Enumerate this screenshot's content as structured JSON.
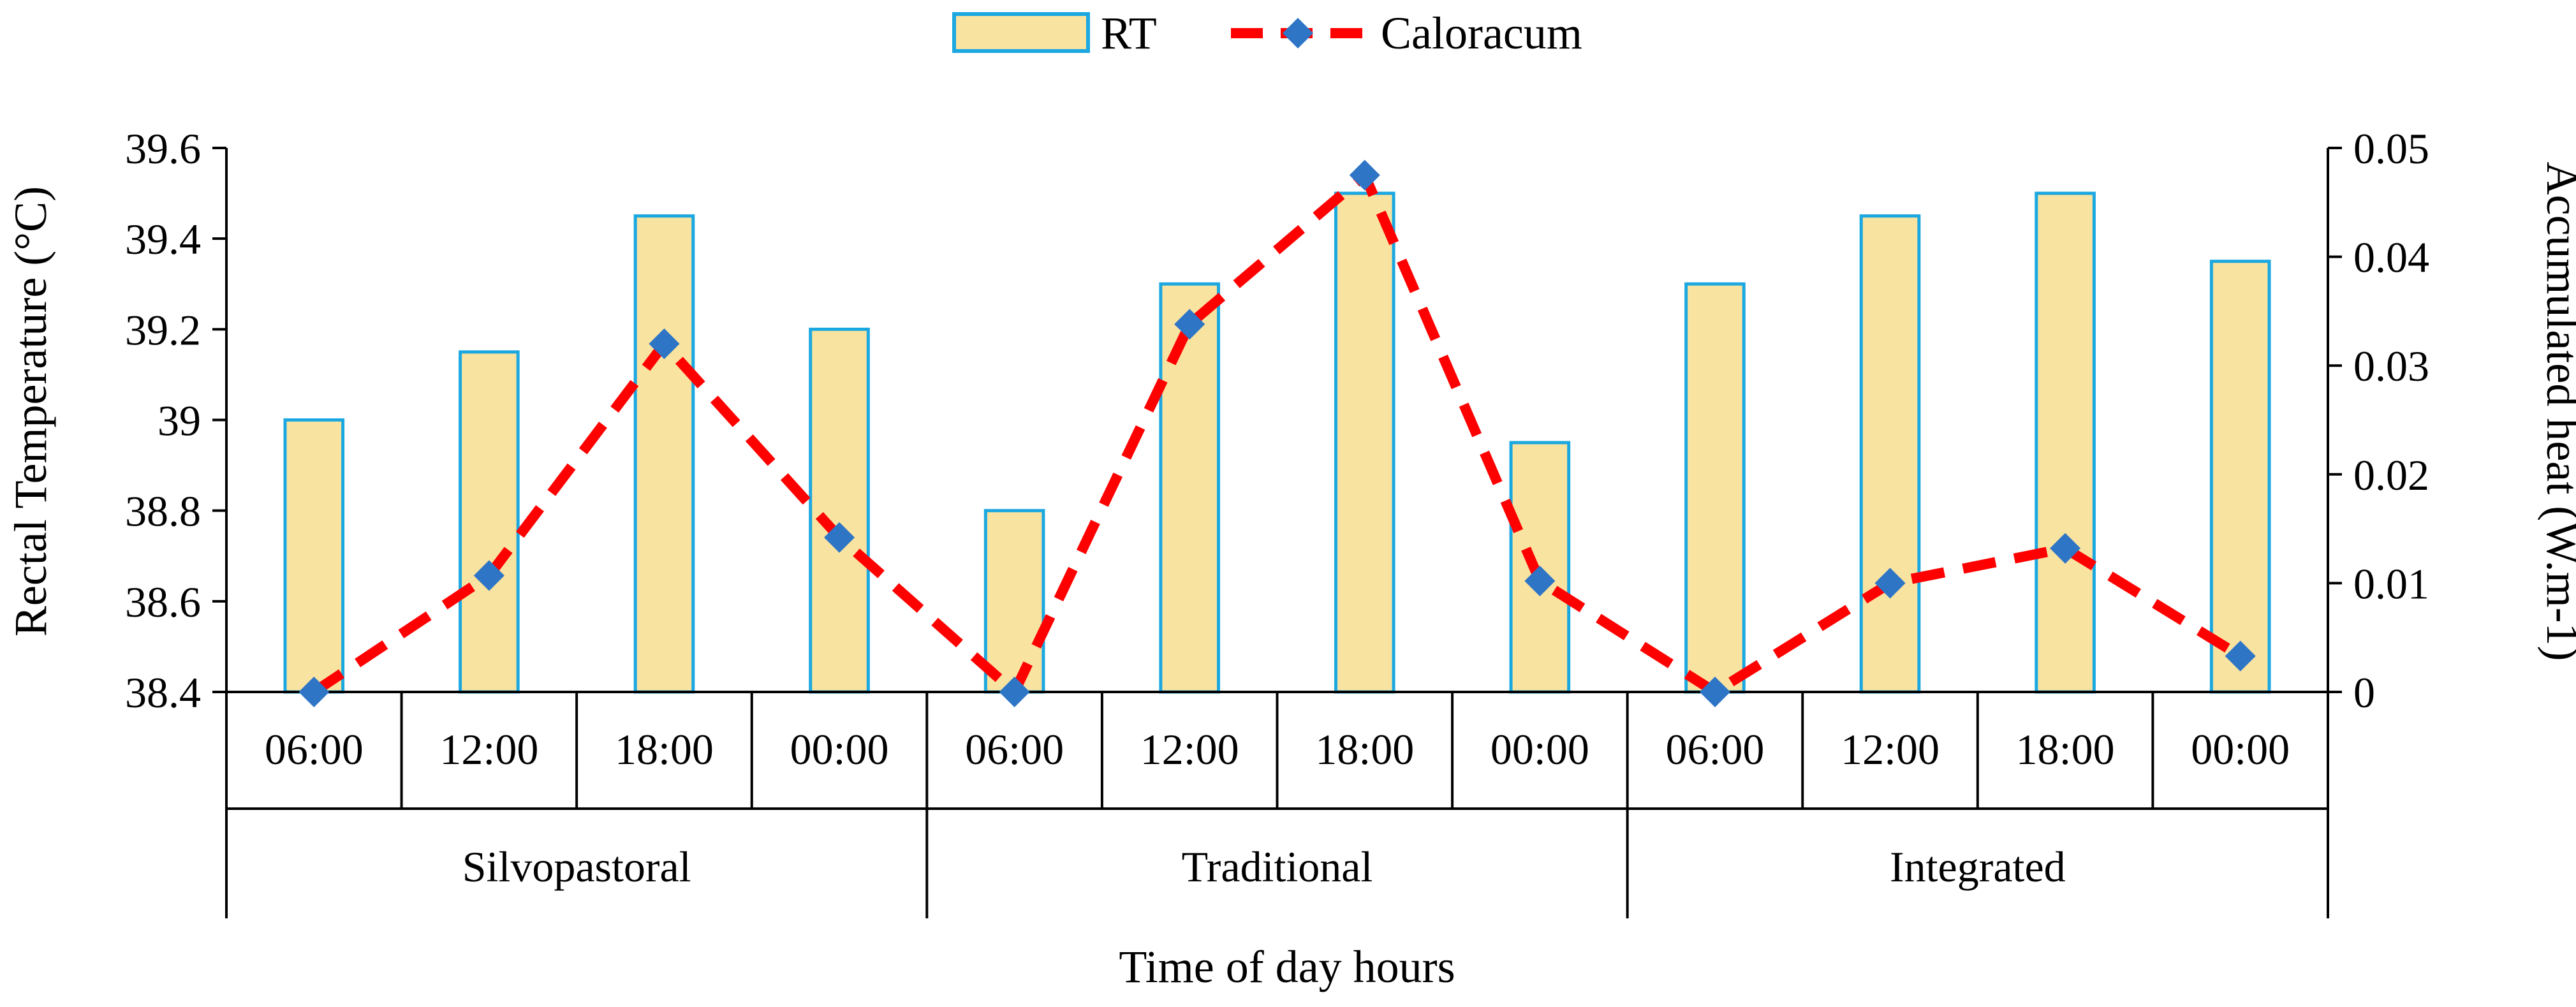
{
  "chart_data": {
    "type": "bar",
    "combo": "bar + dashed line (secondary axis)",
    "title": "",
    "xlabel": "Time of day hours",
    "ylabel": "Rectal Temperature (°C)",
    "y2label": "Accumulated heat (W.m-1)",
    "ylim": [
      38.4,
      39.6
    ],
    "yticks": [
      "38.4",
      "38.6",
      "38.8",
      "39",
      "39.2",
      "39.4",
      "39.6"
    ],
    "y2lim": [
      0,
      0.05
    ],
    "y2ticks": [
      "0",
      "0.01",
      "0.02",
      "0.03",
      "0.04",
      "0.05"
    ],
    "groups": [
      "Silvopastoral",
      "Traditional",
      "Integrated"
    ],
    "categories": [
      "06:00",
      "12:00",
      "18:00",
      "00:00",
      "06:00",
      "12:00",
      "18:00",
      "00:00",
      "06:00",
      "12:00",
      "18:00",
      "00:00"
    ],
    "series": [
      {
        "name": "RT",
        "kind": "bar",
        "axis": "left",
        "color_fill": "#F9E3A1",
        "color_edge": "#1BA8E0",
        "values": [
          39.0,
          39.15,
          39.45,
          39.2,
          38.8,
          39.3,
          39.5,
          38.95,
          39.3,
          39.45,
          39.5,
          39.35
        ]
      },
      {
        "name": "Caloracum",
        "kind": "line",
        "axis": "right",
        "color_line": "#FF0000",
        "color_marker": "#2E75C6",
        "values": [
          0.0,
          0.0107,
          0.032,
          0.0142,
          0.0,
          0.0338,
          0.0475,
          0.0102,
          0.0,
          0.01,
          0.0132,
          0.0033
        ]
      }
    ],
    "legend": {
      "position": "top-center",
      "entries": [
        "RT",
        "Caloracum"
      ]
    }
  }
}
